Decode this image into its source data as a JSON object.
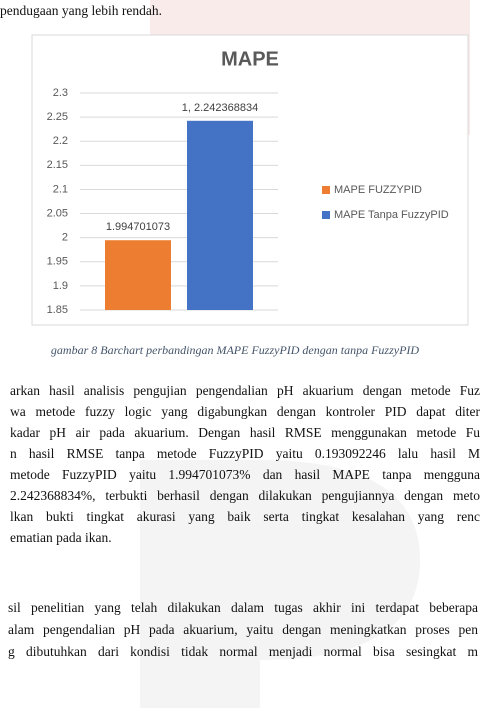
{
  "header": {
    "text": "pendugaan yang lebih rendah."
  },
  "chart_data": {
    "type": "bar",
    "title": "MAPE",
    "series": [
      {
        "name": "MAPE FUZZYPID",
        "color": "#ed7d31",
        "values": [
          1.994701073
        ],
        "value_labels": [
          "1.994701073"
        ]
      },
      {
        "name": "MAPE Tanpa FuzzyPID",
        "color": "#4472c4",
        "values": [
          2.242368834
        ],
        "value_labels": [
          "1, 2.242368834"
        ]
      }
    ],
    "ylim": [
      1.85,
      2.3
    ],
    "yticks": [
      1.85,
      1.9,
      1.95,
      2,
      2.05,
      2.1,
      2.15,
      2.2,
      2.25,
      2.3
    ],
    "grid": true,
    "legend": "right"
  },
  "caption": "gambar 8 Barchart perbandingan MAPE FuzzyPID dengan tanpa FuzzyPID",
  "paragraphs": [
    [
      "arkan hasil analisis pengujian pengendalian pH akuarium dengan metode Fuz",
      "wa metode fuzzy logic yang digabungkan dengan kontroler PID dapat diter",
      "kadar pH air pada akuarium. Dengan hasil RMSE menggunakan metode Fu",
      "n hasil RMSE tanpa metode FuzzyPID yaitu 0.193092246 lalu hasil M",
      "metode FuzzyPID yaitu 1.994701073% dan hasil MAPE tanpa mengguna",
      "2.242368834%, terbukti berhasil dengan dilakukan pengujiannya dengan meto",
      "lkan bukti tingkat akurasi yang baik serta tingkat kesalahan yang renc",
      "ematian pada ikan."
    ],
    [
      "sil penelitian yang telah dilakukan dalam tugas akhir ini  terdapat beberapa",
      "alam pengendalian pH pada akuarium, yaitu dengan meningkatkan proses pen",
      "g dibutuhkan dari kondisi tidak normal menjadi normal bisa sesingkat m"
    ]
  ]
}
